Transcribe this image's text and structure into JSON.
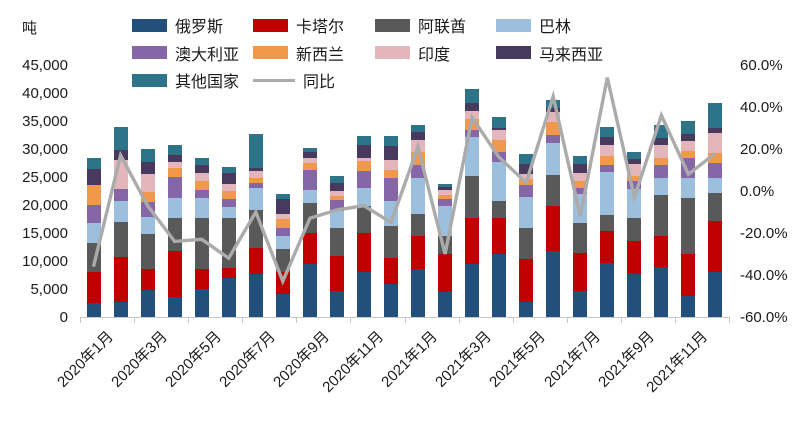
{
  "unit_label": "吨",
  "legend": [
    {
      "label": "俄罗斯",
      "color": "#234F7D",
      "type": "box"
    },
    {
      "label": "卡塔尔",
      "color": "#C00000",
      "type": "box"
    },
    {
      "label": "阿联酋",
      "color": "#595959",
      "type": "box"
    },
    {
      "label": "巴林",
      "color": "#9DBFDE",
      "type": "box"
    },
    {
      "label": "澳大利亚",
      "color": "#8567A8",
      "type": "box"
    },
    {
      "label": "新西兰",
      "color": "#F0984C",
      "type": "box"
    },
    {
      "label": "印度",
      "color": "#E2B6BA",
      "type": "box"
    },
    {
      "label": "马来西亚",
      "color": "#483A5F",
      "type": "box"
    },
    {
      "label": "其他国家",
      "color": "#2E7489",
      "type": "box"
    },
    {
      "label": "同比",
      "color": "#ABABAB",
      "type": "line"
    }
  ],
  "y_axis_left": {
    "unit": "吨",
    "min": 0,
    "max": 45000,
    "ticks": [
      "45,000",
      "40,000",
      "35,000",
      "30,000",
      "25,000",
      "20,000",
      "15,000",
      "10,000",
      "5,000",
      "0"
    ]
  },
  "y_axis_right": {
    "min": -60,
    "max": 60,
    "ticks": [
      "60.0%",
      "40.0%",
      "20.0%",
      "0.0%",
      "-20.0%",
      "-40.0%",
      "-60.0%"
    ]
  },
  "x_axis": {
    "tick_labels": [
      "2020年1月",
      "2020年3月",
      "2020年5月",
      "2020年7月",
      "2020年9月",
      "2020年11月",
      "2021年1月",
      "2021年3月",
      "2021年5月",
      "2021年7月",
      "2021年9月",
      "2021年11月"
    ]
  },
  "chart_data": {
    "type": "stacked_bar_with_line",
    "left_axis_range": [
      0,
      45000
    ],
    "right_axis_range_pct": [
      -60,
      60
    ],
    "grid": false,
    "legend_position": "top",
    "categories": [
      "2020年1月",
      "2020年2月",
      "2020年3月",
      "2020年4月",
      "2020年5月",
      "2020年6月",
      "2020年7月",
      "2020年8月",
      "2020年9月",
      "2020年10月",
      "2020年11月",
      "2020年12月",
      "2021年1月",
      "2021年2月",
      "2021年3月",
      "2021年4月",
      "2021年5月",
      "2021年6月",
      "2021年7月",
      "2021年8月",
      "2021年9月",
      "2021年10月",
      "2021年11月",
      "2021年12月"
    ],
    "series": [
      {
        "name": "俄罗斯",
        "color": "#234F7D",
        "values": [
          2450,
          2700,
          4800,
          3500,
          4950,
          6900,
          7600,
          4100,
          9400,
          4700,
          7950,
          5850,
          8550,
          4400,
          9400,
          11200,
          2600,
          11800,
          4700,
          9700,
          7650,
          8850,
          3800,
          7950
        ]
      },
      {
        "name": "卡塔尔",
        "color": "#C00000",
        "values": [
          5650,
          8000,
          3850,
          8250,
          3550,
          1900,
          4700,
          3850,
          5600,
          6200,
          7100,
          4750,
          5950,
          6800,
          8300,
          6500,
          7700,
          8000,
          6800,
          5600,
          5950,
          5600,
          7400,
          9200
        ]
      },
      {
        "name": "阿联酋",
        "color": "#595959",
        "values": [
          5050,
          6200,
          6250,
          5900,
          9150,
          8800,
          6800,
          4150,
          5350,
          5050,
          4750,
          5600,
          3850,
          3250,
          7400,
          2950,
          5600,
          5600,
          5350,
          2950,
          4150,
          7400,
          10100,
          5050
        ]
      },
      {
        "name": "巴林",
        "color": "#9DBFDE",
        "values": [
          3550,
          3850,
          2950,
          3550,
          3550,
          2050,
          3850,
          2350,
          2350,
          2950,
          3250,
          4450,
          6500,
          5350,
          7100,
          7100,
          5600,
          5600,
          5050,
          7700,
          5050,
          2950,
          3550,
          2650
        ]
      },
      {
        "name": "澳大利亚",
        "color": "#8567A8",
        "values": [
          3250,
          2100,
          2650,
          3850,
          1500,
          1450,
          900,
          1500,
          3550,
          2050,
          2950,
          4150,
          2350,
          1200,
          1200,
          1800,
          2050,
          1500,
          1200,
          1200,
          1500,
          2350,
          3550,
          2650
        ]
      },
      {
        "name": "新西兰",
        "color": "#F0984C",
        "values": [
          3550,
          0,
          1800,
          1500,
          1500,
          1450,
          900,
          1500,
          1200,
          600,
          1800,
          1500,
          2350,
          800,
          1950,
          2050,
          1050,
          2350,
          1200,
          1600,
          900,
          1300,
          1200,
          1800
        ]
      },
      {
        "name": "印度",
        "color": "#E2B6BA",
        "values": [
          0,
          5150,
          3250,
          1200,
          1500,
          1200,
          1300,
          900,
          900,
          1000,
          600,
          1800,
          2050,
          800,
          1500,
          1800,
          1000,
          1800,
          1500,
          1950,
          2050,
          2250,
          1800,
          3550
        ]
      },
      {
        "name": "马来西亚",
        "color": "#483A5F",
        "values": [
          2950,
          1800,
          2100,
          1200,
          1500,
          2050,
          500,
          2650,
          1200,
          1400,
          2350,
          2350,
          1500,
          700,
          1400,
          400,
          1650,
          600,
          1450,
          1500,
          900,
          1300,
          1200,
          900
        ]
      },
      {
        "name": "其他国家",
        "color": "#2E7489",
        "values": [
          1950,
          4150,
          2400,
          1750,
          1200,
          1000,
          6100,
          1000,
          700,
          1250,
          1500,
          1800,
          1200,
          400,
          2550,
          1950,
          1900,
          1500,
          1500,
          1800,
          1300,
          2250,
          2350,
          4450
        ]
      }
    ],
    "line_series": {
      "name": "同比",
      "color": "#ABABAB",
      "axis": "right",
      "unit": "%",
      "values": [
        -36,
        17,
        -7,
        -24,
        -23,
        -32,
        -10,
        -43,
        -13,
        -9,
        -7,
        -15,
        21,
        -30,
        35,
        16,
        4,
        45,
        -12,
        54,
        -3,
        36,
        8,
        18
      ]
    }
  }
}
